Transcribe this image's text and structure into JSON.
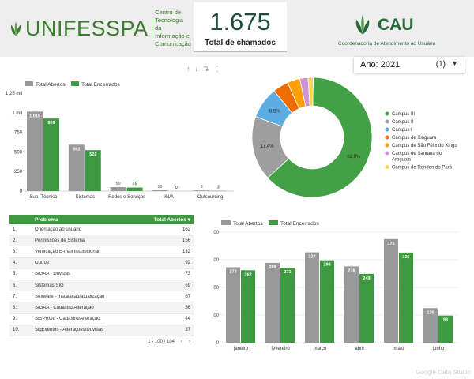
{
  "header": {
    "unifesspa_brand": "UNIFESSPA",
    "unifesspa_sub_line1": "Centro de Tecnologia da",
    "unifesspa_sub_line2": "Informação e Comunicação",
    "total_value": "1.675",
    "total_label": "Total de chamados",
    "cau_brand": "CAU",
    "cau_sub": "Coordenadoria de Atendimento ao Usuário"
  },
  "year_select": {
    "label": "Ano",
    "value": "2021",
    "count": "(1)"
  },
  "colors": {
    "green": "#3d9a41",
    "gray": "#999999",
    "dark_green": "#1f4e3d"
  },
  "icons": [
    "arrow-up-icon",
    "arrow-down-icon",
    "sort-icon",
    "more-vert-icon",
    "caret-down-icon",
    "leaf-logo-icon"
  ],
  "chart_data": [
    {
      "type": "bar",
      "legend": [
        "Total Abertos",
        "Total Encerrados"
      ],
      "categories": [
        "Sup. Técnico",
        "Sistemas",
        "Redes e Serviços",
        "#N/A",
        "Outsourcing"
      ],
      "series": [
        {
          "name": "Total Abertos",
          "values": [
            1015,
            592,
            50,
            10,
            8
          ],
          "labels": [
            "1.015",
            "592",
            "50",
            "10",
            "8"
          ]
        },
        {
          "name": "Total Encerrados",
          "values": [
            926,
            522,
            45,
            0,
            3
          ],
          "labels": [
            "926",
            "522",
            "45",
            "0",
            "3"
          ]
        }
      ],
      "yticks": [
        "0",
        "250",
        "500",
        "750",
        "1 mil",
        "1,25 mil"
      ],
      "ylim": [
        0,
        1250
      ]
    },
    {
      "type": "pie",
      "labels": [
        "Campus III",
        "Campus II",
        "Campus I",
        "Campus de Xinguara",
        "Campus de São Félix do Xingu",
        "Campus de Santana do Araguaia",
        "Campus de Rondon do Pará"
      ],
      "values": [
        62.9,
        17.4,
        8.5,
        4.2,
        3.4,
        2.2,
        1.4
      ],
      "value_labels": [
        "62,9%",
        "17,4%",
        "8,5%",
        "",
        "",
        "",
        ""
      ],
      "colors": [
        "#43a047",
        "#9e9e9e",
        "#5dade2",
        "#ef6c00",
        "#ffa000",
        "#ce93d8",
        "#ffd54f"
      ],
      "legend_position": "right"
    },
    {
      "type": "bar",
      "legend": [
        "Total Abertos",
        "Total Encerrados"
      ],
      "categories": [
        "janeiro",
        "fevereiro",
        "março",
        "abril",
        "maio",
        "junho"
      ],
      "series": [
        {
          "name": "Total Abertos",
          "values": [
            273,
            289,
            327,
            276,
            375,
            125
          ]
        },
        {
          "name": "Total Encerrados",
          "values": [
            262,
            271,
            298,
            249,
            326,
            98
          ]
        }
      ],
      "yticks": [
        "0",
        "100",
        "200",
        "300",
        "400"
      ],
      "ylim": [
        0,
        400
      ]
    },
    {
      "type": "table",
      "headers": [
        "Problema",
        "Total Abertos ▾"
      ],
      "rows": [
        [
          "1.",
          "Orientação ao usuário",
          "162"
        ],
        [
          "2.",
          "Permissões de Sistema",
          "156"
        ],
        [
          "3.",
          "Verificação E-mail Institucional",
          "132"
        ],
        [
          "4.",
          "Outros",
          "92"
        ],
        [
          "5.",
          "SIGAA - Dúvidas",
          "73"
        ],
        [
          "6.",
          "Sistemas SIG",
          "69"
        ],
        [
          "7.",
          "Software - Instalação/atualização",
          "67"
        ],
        [
          "8.",
          "SIGAA - Cadastro/Alteração",
          "56"
        ],
        [
          "9.",
          "SISPROL - Cadastro/Alteração",
          "44"
        ],
        [
          "10.",
          "SigEventos - Alterações/Dúvidas",
          "37"
        ]
      ],
      "pager": "1 - 100 / 104"
    }
  ],
  "watermark": "Google Data Studio"
}
